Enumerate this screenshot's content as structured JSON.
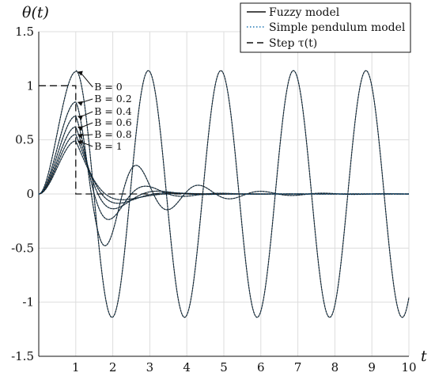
{
  "chart_data": {
    "type": "line",
    "title": "",
    "ylabel": "θ(t)",
    "xlabel": "t",
    "xlim": [
      0,
      10
    ],
    "ylim": [
      -1.5,
      1.5
    ],
    "xticks": [
      1,
      2,
      3,
      4,
      5,
      6,
      7,
      8,
      9,
      10
    ],
    "yticks": [
      1.5,
      1,
      0.5,
      0,
      -0.5,
      -1,
      -1.5
    ],
    "grid": true,
    "legend_position": "top-right",
    "legend": [
      {
        "label": "Fuzzy model",
        "style": "solid"
      },
      {
        "label": "Simple pendulum model",
        "style": "dotted"
      },
      {
        "label": "Step τ(t)",
        "style": "dashed"
      }
    ],
    "step": {
      "height": 1,
      "t_on": 0,
      "t_off": 1
    },
    "damping_labels": [
      "B = 0",
      "B = 0.2",
      "B = 0.4",
      "B = 0.6",
      "B = 0.8",
      "B = 1"
    ],
    "series": [
      {
        "damping": 0,
        "peak_time": 1,
        "peak_value": 1.13,
        "period": 1.96,
        "amplitude": 1.14
      },
      {
        "damping": 0.2,
        "peak_time": 1,
        "peak_value": 0.85,
        "cross_zero": 1.42,
        "minimum": -0.47
      },
      {
        "damping": 0.4,
        "peak_time": 1,
        "peak_value": 0.72,
        "cross_zero": 1.5,
        "minimum": -0.22
      },
      {
        "damping": 0.6,
        "peak_time": 1,
        "peak_value": 0.62,
        "cross_zero": 1.6,
        "minimum": -0.12
      },
      {
        "damping": 0.8,
        "peak_time": 1,
        "peak_value": 0.55,
        "cross_zero": 1.7,
        "minimum": -0.07
      },
      {
        "damping": 1,
        "peak_time": 1,
        "peak_value": 0.49,
        "cross_zero": 1.8,
        "minimum": -0.04
      }
    ],
    "colors": {
      "fuzzy": "#111111",
      "pendulum": "#1f77b4",
      "step": "#111111",
      "grid": "#dddddd"
    }
  }
}
